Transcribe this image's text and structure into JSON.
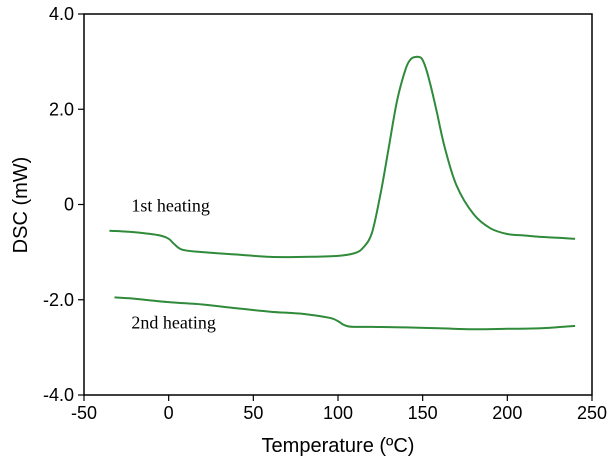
{
  "chart_data": {
    "type": "line",
    "title": "",
    "xlabel": "Temperature (ºC)",
    "ylabel": "DSC (mW)",
    "xlim": [
      -50,
      250
    ],
    "ylim": [
      -4.0,
      4.0
    ],
    "xticks": [
      -50,
      0,
      50,
      100,
      150,
      200,
      250
    ],
    "xtick_labels": [
      "-50",
      "0",
      "50",
      "100",
      "150",
      "200",
      "250"
    ],
    "yticks": [
      4.0,
      2.0,
      0,
      -2.0,
      -4.0
    ],
    "ytick_labels": [
      "4.0",
      "2.0",
      "0",
      "-2.0",
      "-4.0"
    ],
    "grid": false,
    "legend": "none",
    "line_color": "#2f8a3a",
    "series": [
      {
        "label": "1st heating",
        "x": [
          -35,
          -25,
          -15,
          -5,
          0,
          3,
          8,
          20,
          40,
          60,
          80,
          100,
          110,
          115,
          120,
          125,
          130,
          135,
          140,
          143,
          146,
          149,
          151,
          154,
          158,
          163,
          170,
          180,
          190,
          200,
          210,
          220,
          230,
          240
        ],
        "y": [
          -0.55,
          -0.57,
          -0.6,
          -0.65,
          -0.72,
          -0.82,
          -0.95,
          -1.0,
          -1.05,
          -1.1,
          -1.1,
          -1.08,
          -1.02,
          -0.9,
          -0.6,
          0.2,
          1.2,
          2.2,
          2.85,
          3.05,
          3.1,
          3.08,
          2.95,
          2.6,
          2.0,
          1.2,
          0.4,
          -0.2,
          -0.5,
          -0.62,
          -0.65,
          -0.68,
          -0.7,
          -0.72
        ]
      },
      {
        "label": "2nd heating",
        "x": [
          -32,
          -20,
          0,
          20,
          40,
          60,
          80,
          95,
          100,
          103,
          106,
          110,
          120,
          140,
          160,
          180,
          200,
          220,
          240
        ],
        "y": [
          -1.95,
          -1.98,
          -2.05,
          -2.1,
          -2.18,
          -2.25,
          -2.3,
          -2.38,
          -2.45,
          -2.52,
          -2.56,
          -2.57,
          -2.57,
          -2.58,
          -2.6,
          -2.62,
          -2.61,
          -2.6,
          -2.55
        ]
      }
    ],
    "annotations": [
      {
        "text": "1st heating",
        "x": -22,
        "y": -0.15
      },
      {
        "text": "2nd heating",
        "x": -22,
        "y": -2.6
      }
    ]
  }
}
